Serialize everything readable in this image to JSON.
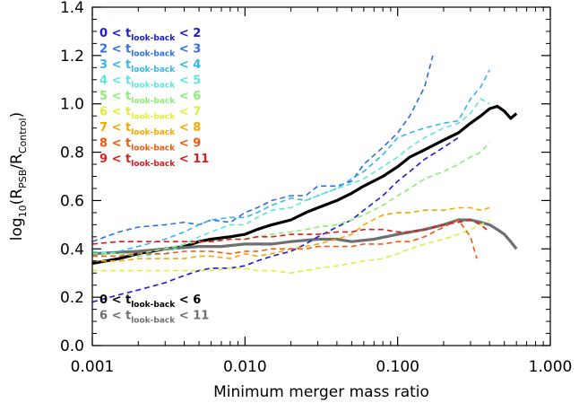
{
  "chart_data": {
    "type": "line",
    "title": "",
    "xlabel": "Minimum merger mass ratio",
    "ylabel": "log10(RPSB/RControl)",
    "ylabel_parts": {
      "pre": "log",
      "sub1": "10",
      "mid1": "(R",
      "sub2": "PSB",
      "mid2": "/R",
      "sub3": "Control",
      "post": ")"
    },
    "xscale": "log",
    "xlim": [
      0.001,
      1.0
    ],
    "ylim": [
      0.0,
      1.4
    ],
    "xticks": [
      0.001,
      0.01,
      0.1,
      1.0
    ],
    "xtick_labels": [
      "0.001",
      "0.010",
      "0.100",
      "1.000"
    ],
    "yticks": [
      0.0,
      0.2,
      0.4,
      0.6,
      0.8,
      1.0,
      1.2,
      1.4
    ],
    "ytick_labels": [
      "0.0",
      "0.2",
      "0.4",
      "0.6",
      "0.8",
      "1.0",
      "1.2",
      "1.4"
    ],
    "grid": false,
    "legend_text": {
      "lt": "<",
      "tsym": "t",
      "tsub": "look-back"
    },
    "legend_groups": [
      {
        "placement": "top-left",
        "series": [
          2,
          3,
          4,
          5,
          6,
          7,
          8,
          9,
          10
        ]
      },
      {
        "placement": "bottom-left",
        "series": [
          0,
          1
        ]
      }
    ],
    "series": [
      {
        "name": "0 < tlook-back < 6",
        "range_lo": "0",
        "range_hi": "6",
        "color": "#000000",
        "style": "solid-thick",
        "x": [
          0.001,
          0.0015,
          0.002,
          0.003,
          0.004,
          0.005,
          0.006,
          0.008,
          0.01,
          0.012,
          0.015,
          0.02,
          0.025,
          0.03,
          0.04,
          0.05,
          0.06,
          0.08,
          0.1,
          0.12,
          0.15,
          0.2,
          0.25,
          0.3,
          0.35,
          0.4,
          0.45,
          0.5,
          0.55,
          0.6
        ],
        "y": [
          0.34,
          0.36,
          0.38,
          0.4,
          0.41,
          0.43,
          0.44,
          0.45,
          0.46,
          0.48,
          0.5,
          0.52,
          0.55,
          0.57,
          0.6,
          0.63,
          0.66,
          0.7,
          0.74,
          0.78,
          0.81,
          0.85,
          0.88,
          0.92,
          0.95,
          0.98,
          0.99,
          0.97,
          0.94,
          0.96
        ]
      },
      {
        "name": "6 < tlook-back < 11",
        "range_lo": "6",
        "range_hi": "11",
        "color": "#707070",
        "style": "solid-thick",
        "x": [
          0.001,
          0.002,
          0.003,
          0.005,
          0.007,
          0.01,
          0.015,
          0.02,
          0.03,
          0.04,
          0.05,
          0.07,
          0.1,
          0.15,
          0.2,
          0.25,
          0.3,
          0.35,
          0.4,
          0.45,
          0.5,
          0.55,
          0.6
        ],
        "y": [
          0.38,
          0.39,
          0.4,
          0.41,
          0.41,
          0.42,
          0.42,
          0.43,
          0.44,
          0.44,
          0.43,
          0.44,
          0.46,
          0.48,
          0.5,
          0.52,
          0.52,
          0.51,
          0.5,
          0.48,
          0.46,
          0.43,
          0.4
        ]
      },
      {
        "name": "0 < tlook-back < 2",
        "range_lo": "0",
        "range_hi": "2",
        "color": "#1a1ad8",
        "style": "dashed",
        "x": [
          0.001,
          0.0015,
          0.002,
          0.003,
          0.004,
          0.005,
          0.006,
          0.008,
          0.01,
          0.012,
          0.015,
          0.02,
          0.025,
          0.03,
          0.04,
          0.05,
          0.06,
          0.08,
          0.1,
          0.12,
          0.15,
          0.2,
          0.25
        ],
        "y": [
          0.18,
          0.21,
          0.23,
          0.26,
          0.29,
          0.31,
          0.32,
          0.32,
          0.33,
          0.35,
          0.37,
          0.39,
          0.42,
          0.45,
          0.49,
          0.52,
          0.56,
          0.62,
          0.68,
          0.72,
          0.77,
          0.82,
          0.86
        ]
      },
      {
        "name": "2 < tlook-back < 3",
        "range_lo": "2",
        "range_hi": "3",
        "color": "#2e6fe0",
        "style": "dashed",
        "x": [
          0.001,
          0.0015,
          0.002,
          0.003,
          0.004,
          0.005,
          0.006,
          0.008,
          0.01,
          0.012,
          0.015,
          0.02,
          0.025,
          0.03,
          0.04,
          0.05,
          0.06,
          0.08,
          0.1,
          0.12,
          0.15,
          0.17
        ],
        "y": [
          0.43,
          0.47,
          0.49,
          0.5,
          0.51,
          0.5,
          0.52,
          0.51,
          0.55,
          0.57,
          0.6,
          0.62,
          0.62,
          0.66,
          0.66,
          0.68,
          0.75,
          0.82,
          0.88,
          0.95,
          1.07,
          1.2
        ]
      },
      {
        "name": "3 < tlook-back < 4",
        "range_lo": "3",
        "range_hi": "4",
        "color": "#36b6e8",
        "style": "dashed",
        "x": [
          0.001,
          0.0015,
          0.002,
          0.003,
          0.004,
          0.005,
          0.006,
          0.008,
          0.01,
          0.012,
          0.015,
          0.02,
          0.025,
          0.03,
          0.04,
          0.05,
          0.06,
          0.08,
          0.1,
          0.12,
          0.15,
          0.2,
          0.25,
          0.3,
          0.35,
          0.4
        ],
        "y": [
          0.37,
          0.39,
          0.41,
          0.44,
          0.47,
          0.5,
          0.52,
          0.53,
          0.53,
          0.55,
          0.58,
          0.61,
          0.6,
          0.62,
          0.65,
          0.69,
          0.72,
          0.79,
          0.86,
          0.88,
          0.9,
          0.92,
          0.93,
          1.02,
          1.07,
          1.14
        ]
      },
      {
        "name": "4 < tlook-back < 5",
        "range_lo": "4",
        "range_hi": "5",
        "color": "#5fe6dc",
        "style": "dashed",
        "x": [
          0.001,
          0.0015,
          0.002,
          0.003,
          0.004,
          0.005,
          0.006,
          0.008,
          0.01,
          0.012,
          0.015,
          0.02,
          0.025,
          0.03,
          0.04,
          0.05,
          0.06,
          0.08,
          0.1,
          0.12,
          0.15,
          0.2,
          0.25,
          0.3,
          0.35,
          0.4
        ],
        "y": [
          0.39,
          0.38,
          0.37,
          0.38,
          0.42,
          0.45,
          0.47,
          0.5,
          0.5,
          0.53,
          0.56,
          0.57,
          0.6,
          0.62,
          0.65,
          0.67,
          0.69,
          0.74,
          0.78,
          0.82,
          0.86,
          0.9,
          0.92,
          0.96,
          1.02,
          1.0
        ]
      },
      {
        "name": "5 < tlook-back < 6",
        "range_lo": "5",
        "range_hi": "6",
        "color": "#8cec78",
        "style": "dashed",
        "x": [
          0.001,
          0.0015,
          0.002,
          0.003,
          0.004,
          0.005,
          0.006,
          0.008,
          0.01,
          0.012,
          0.015,
          0.02,
          0.025,
          0.03,
          0.04,
          0.05,
          0.06,
          0.08,
          0.1,
          0.12,
          0.15,
          0.2,
          0.25,
          0.3,
          0.35,
          0.4
        ],
        "y": [
          0.38,
          0.38,
          0.38,
          0.4,
          0.42,
          0.43,
          0.43,
          0.44,
          0.44,
          0.45,
          0.46,
          0.47,
          0.48,
          0.49,
          0.5,
          0.52,
          0.54,
          0.58,
          0.62,
          0.65,
          0.69,
          0.72,
          0.75,
          0.78,
          0.8,
          0.84
        ]
      },
      {
        "name": "6 < tlook-back < 7",
        "range_lo": "6",
        "range_hi": "7",
        "color": "#dfee3c",
        "style": "dashed",
        "x": [
          0.001,
          0.0015,
          0.002,
          0.003,
          0.004,
          0.005,
          0.006,
          0.008,
          0.01,
          0.012,
          0.015,
          0.02,
          0.025,
          0.03,
          0.04,
          0.05,
          0.06,
          0.08,
          0.1,
          0.12,
          0.15,
          0.2,
          0.25,
          0.3,
          0.35,
          0.4
        ],
        "y": [
          0.31,
          0.31,
          0.31,
          0.31,
          0.31,
          0.31,
          0.31,
          0.32,
          0.32,
          0.31,
          0.31,
          0.3,
          0.31,
          0.32,
          0.33,
          0.34,
          0.35,
          0.36,
          0.38,
          0.4,
          0.42,
          0.44,
          0.46,
          0.48,
          0.5,
          0.52
        ]
      },
      {
        "name": "7 < tlook-back < 8",
        "range_lo": "7",
        "range_hi": "8",
        "color": "#f5a800",
        "style": "dashed",
        "x": [
          0.001,
          0.0015,
          0.002,
          0.003,
          0.004,
          0.005,
          0.006,
          0.008,
          0.01,
          0.012,
          0.015,
          0.02,
          0.025,
          0.03,
          0.04,
          0.05,
          0.06,
          0.08,
          0.1,
          0.12,
          0.15,
          0.2,
          0.25,
          0.3,
          0.35,
          0.4
        ],
        "y": [
          0.35,
          0.35,
          0.36,
          0.36,
          0.36,
          0.37,
          0.37,
          0.36,
          0.38,
          0.37,
          0.38,
          0.4,
          0.41,
          0.42,
          0.44,
          0.46,
          0.5,
          0.54,
          0.55,
          0.55,
          0.56,
          0.56,
          0.57,
          0.57,
          0.56,
          0.57
        ]
      },
      {
        "name": "8 < tlook-back < 9",
        "range_lo": "8",
        "range_hi": "9",
        "color": "#ee5a10",
        "style": "dashed",
        "x": [
          0.001,
          0.0015,
          0.002,
          0.003,
          0.004,
          0.005,
          0.006,
          0.008,
          0.01,
          0.012,
          0.015,
          0.02,
          0.025,
          0.03,
          0.04,
          0.05,
          0.06,
          0.08,
          0.1,
          0.12,
          0.15,
          0.2,
          0.25,
          0.3,
          0.33
        ],
        "y": [
          0.37,
          0.37,
          0.38,
          0.38,
          0.39,
          0.39,
          0.39,
          0.38,
          0.39,
          0.39,
          0.4,
          0.4,
          0.4,
          0.41,
          0.41,
          0.41,
          0.42,
          0.42,
          0.43,
          0.43,
          0.45,
          0.49,
          0.52,
          0.45,
          0.36
        ]
      },
      {
        "name": "9 < tlook-back < 11",
        "range_lo": "9",
        "range_hi": "11",
        "color": "#d81e1e",
        "style": "dashed",
        "x": [
          0.001,
          0.0015,
          0.002,
          0.003,
          0.004,
          0.005,
          0.006,
          0.008,
          0.01,
          0.012,
          0.015,
          0.02,
          0.025,
          0.03,
          0.04,
          0.05,
          0.06,
          0.08,
          0.1,
          0.12,
          0.15,
          0.2,
          0.25,
          0.3,
          0.35,
          0.4
        ],
        "y": [
          0.42,
          0.43,
          0.43,
          0.43,
          0.43,
          0.43,
          0.43,
          0.44,
          0.44,
          0.45,
          0.45,
          0.46,
          0.46,
          0.46,
          0.47,
          0.47,
          0.48,
          0.48,
          0.47,
          0.47,
          0.48,
          0.5,
          0.51,
          0.52,
          0.5,
          0.47
        ]
      }
    ]
  }
}
